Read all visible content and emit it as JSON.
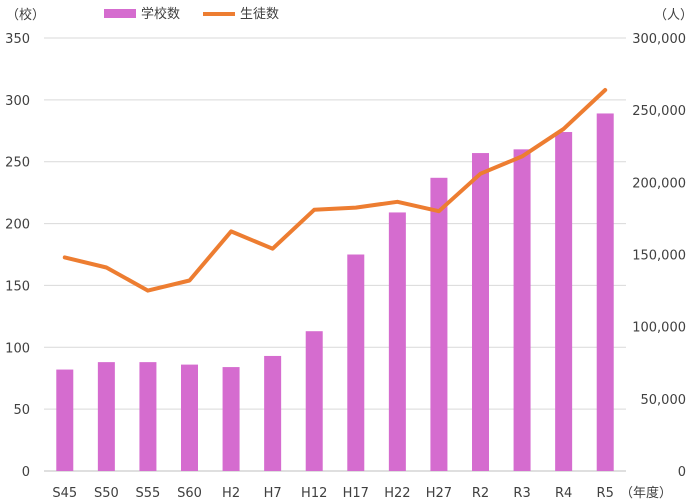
{
  "chart_data": {
    "type": "bar+line",
    "categories": [
      "S45",
      "S50",
      "S55",
      "S60",
      "H2",
      "H7",
      "H12",
      "H17",
      "H22",
      "H27",
      "R2",
      "R3",
      "R4",
      "R5"
    ],
    "x_unit_label": "（年度）",
    "left_axis": {
      "unit_label": "（校）",
      "ylim": [
        0,
        350
      ],
      "ticks": [
        "0",
        "50",
        "100",
        "150",
        "200",
        "250",
        "300",
        "350"
      ],
      "tick_values": [
        0,
        50,
        100,
        150,
        200,
        250,
        300,
        350
      ]
    },
    "right_axis": {
      "unit_label": "（人）",
      "ylim": [
        0,
        300000
      ],
      "ticks": [
        "0",
        "50,000",
        "100,000",
        "150,000",
        "200,000",
        "250,000",
        "300,000"
      ],
      "tick_values": [
        0,
        50000,
        100000,
        150000,
        200000,
        250000,
        300000
      ]
    },
    "series": [
      {
        "name": "学校数",
        "type": "bar",
        "axis": "left",
        "color": "#d56ccf",
        "values": [
          82,
          88,
          88,
          86,
          84,
          93,
          113,
          175,
          209,
          237,
          257,
          260,
          274,
          289
        ]
      },
      {
        "name": "生徒数",
        "type": "line",
        "axis": "right",
        "color": "#ed7d31",
        "values": [
          148000,
          141000,
          125000,
          132000,
          166000,
          154000,
          181000,
          182500,
          186500,
          180000,
          206000,
          218000,
          237000,
          264000
        ]
      }
    ],
    "legend_position": "top",
    "grid": true
  }
}
